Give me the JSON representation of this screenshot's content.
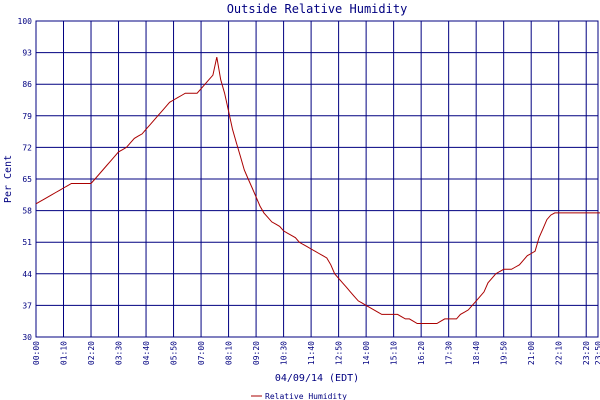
{
  "chart_data": {
    "type": "line",
    "title": "Outside Relative Humidity",
    "xlabel": "04/09/14 (EDT)",
    "ylabel": "Per Cent",
    "ylim": [
      30,
      100
    ],
    "yticks": [
      30,
      37,
      44,
      51,
      58,
      65,
      72,
      79,
      86,
      93,
      100
    ],
    "xticks": [
      "00:00",
      "01:10",
      "02:20",
      "03:30",
      "04:40",
      "05:50",
      "07:00",
      "08:10",
      "09:20",
      "10:30",
      "11:40",
      "12:50",
      "14:00",
      "15:10",
      "16:20",
      "17:30",
      "18:40",
      "19:50",
      "21:00",
      "22:10",
      "23:20",
      "23:50"
    ],
    "grid": true,
    "legend_position": "bottom-center",
    "colors": {
      "line": "#aa0000",
      "grid": "#000080",
      "text": "#000080",
      "background": "#ffffff"
    },
    "series": [
      {
        "name": "Relative Humidity",
        "x": [
          0,
          10,
          20,
          30,
          40,
          50,
          60,
          70,
          80,
          90,
          100,
          110,
          120,
          130,
          140,
          150,
          160,
          170,
          180,
          190,
          200,
          210,
          220,
          230,
          240,
          250,
          260,
          270,
          280,
          290,
          300,
          310,
          320,
          330,
          340,
          350,
          360,
          370,
          380,
          390,
          400,
          410,
          420,
          430,
          440,
          450,
          460,
          470,
          480,
          490,
          500,
          510,
          520,
          530,
          540,
          550,
          560,
          570,
          580,
          590,
          600,
          610,
          620,
          630,
          640,
          650,
          660,
          670,
          680,
          690,
          700,
          710,
          720,
          730,
          740,
          750,
          760,
          770,
          780,
          790,
          800,
          810,
          820,
          830,
          840,
          850,
          860,
          870,
          880,
          890,
          900,
          910,
          920,
          930,
          940,
          950,
          960,
          970,
          980,
          990,
          1000,
          1010,
          1020,
          1030,
          1040,
          1050,
          1060,
          1070,
          1080,
          1090,
          1100,
          1110,
          1120,
          1130,
          1140,
          1150,
          1160,
          1170,
          1180,
          1190,
          1200,
          1210,
          1220,
          1230,
          1240,
          1250,
          1260,
          1270,
          1280,
          1290,
          1300,
          1310,
          1320,
          1330,
          1340,
          1350,
          1360,
          1370,
          1380,
          1390,
          1400,
          1410,
          1420,
          1430,
          1440
        ],
        "values": [
          59.5,
          60,
          60.5,
          61,
          61.5,
          62,
          62.5,
          63,
          63.5,
          64,
          64,
          64,
          64,
          64,
          64,
          65,
          66,
          67,
          68,
          69,
          70,
          71,
          71.5,
          72,
          73,
          74,
          74.5,
          75,
          76,
          77,
          78,
          79,
          80,
          81,
          82,
          82.5,
          83,
          83.5,
          84,
          84,
          84,
          84,
          85,
          86,
          87,
          88,
          92,
          87,
          84,
          80,
          76,
          73,
          70,
          67,
          65,
          63,
          61,
          59,
          57.5,
          56.5,
          55.5,
          55,
          54.5,
          53.5,
          53,
          52.5,
          52,
          51,
          50.5,
          50,
          49.5,
          49,
          48.5,
          48,
          47.5,
          46,
          44,
          43,
          42,
          41,
          40,
          39,
          38,
          37.5,
          37,
          36.5,
          36,
          35.5,
          35,
          35,
          35,
          35,
          35,
          34.5,
          34,
          34,
          33.5,
          33,
          33,
          33,
          33,
          33,
          33,
          33.5,
          34,
          34,
          34,
          34,
          35,
          35.5,
          36,
          37,
          38,
          39,
          40,
          42,
          43,
          44,
          44.5,
          45,
          45,
          45,
          45.5,
          46,
          47,
          48,
          48.5,
          49,
          52,
          54,
          56,
          57,
          57.5,
          57.5,
          57.5,
          57.5,
          57.5,
          57.5,
          57.5,
          57.5,
          57.5,
          57.5,
          57.5,
          57.5,
          57.5
        ]
      }
    ]
  }
}
